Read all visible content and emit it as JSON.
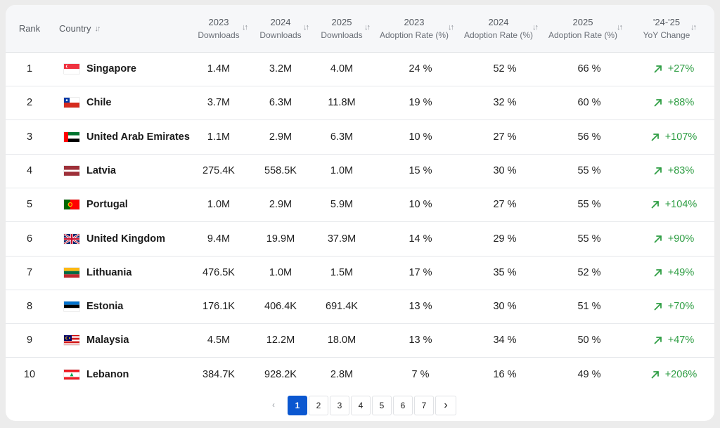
{
  "headers": {
    "rank": "Rank",
    "country": "Country",
    "dl2023_year": "2023",
    "dl2023_sub": "Downloads",
    "dl2024_year": "2024",
    "dl2024_sub": "Downloads",
    "dl2025_year": "2025",
    "dl2025_sub": "Downloads",
    "ar2023_year": "2023",
    "ar2023_sub": "Adoption Rate (%)",
    "ar2024_year": "2024",
    "ar2024_sub": "Adoption Rate (%)",
    "ar2025_year": "2025",
    "ar2025_sub": "Adoption Rate (%)",
    "yoy_top": "'24-'25",
    "yoy_sub": "YoY Change",
    "sort_glyph": "↓↑"
  },
  "rows": [
    {
      "rank": "1",
      "country": "Singapore",
      "flag": "sg-flag-icon",
      "d23": "1.4M",
      "d24": "3.2M",
      "d25": "4.0M",
      "a23": "24 %",
      "a24": "52 %",
      "a25": "66 %",
      "yoy": "+27%"
    },
    {
      "rank": "2",
      "country": "Chile",
      "flag": "cl-flag-icon",
      "d23": "3.7M",
      "d24": "6.3M",
      "d25": "11.8M",
      "a23": "19 %",
      "a24": "32 %",
      "a25": "60 %",
      "yoy": "+88%"
    },
    {
      "rank": "3",
      "country": "United Arab Emirates",
      "flag": "ae-flag-icon",
      "d23": "1.1M",
      "d24": "2.9M",
      "d25": "6.3M",
      "a23": "10 %",
      "a24": "27 %",
      "a25": "56 %",
      "yoy": "+107%"
    },
    {
      "rank": "4",
      "country": "Latvia",
      "flag": "lv-flag-icon",
      "d23": "275.4K",
      "d24": "558.5K",
      "d25": "1.0M",
      "a23": "15 %",
      "a24": "30 %",
      "a25": "55 %",
      "yoy": "+83%"
    },
    {
      "rank": "5",
      "country": "Portugal",
      "flag": "pt-flag-icon",
      "d23": "1.0M",
      "d24": "2.9M",
      "d25": "5.9M",
      "a23": "10 %",
      "a24": "27 %",
      "a25": "55 %",
      "yoy": "+104%"
    },
    {
      "rank": "6",
      "country": "United Kingdom",
      "flag": "gb-flag-icon",
      "d23": "9.4M",
      "d24": "19.9M",
      "d25": "37.9M",
      "a23": "14 %",
      "a24": "29 %",
      "a25": "55 %",
      "yoy": "+90%"
    },
    {
      "rank": "7",
      "country": "Lithuania",
      "flag": "lt-flag-icon",
      "d23": "476.5K",
      "d24": "1.0M",
      "d25": "1.5M",
      "a23": "17 %",
      "a24": "35 %",
      "a25": "52 %",
      "yoy": "+49%"
    },
    {
      "rank": "8",
      "country": "Estonia",
      "flag": "ee-flag-icon",
      "d23": "176.1K",
      "d24": "406.4K",
      "d25": "691.4K",
      "a23": "13 %",
      "a24": "30 %",
      "a25": "51 %",
      "yoy": "+70%"
    },
    {
      "rank": "9",
      "country": "Malaysia",
      "flag": "my-flag-icon",
      "d23": "4.5M",
      "d24": "12.2M",
      "d25": "18.0M",
      "a23": "13 %",
      "a24": "34 %",
      "a25": "50 %",
      "yoy": "+47%"
    },
    {
      "rank": "10",
      "country": "Lebanon",
      "flag": "lb-flag-icon",
      "d23": "384.7K",
      "d24": "928.2K",
      "d25": "2.8M",
      "a23": "7 %",
      "a24": "16 %",
      "a25": "49 %",
      "yoy": "+206%"
    }
  ],
  "pagination": {
    "prev_glyph": "‹",
    "next_glyph": "›",
    "pages": [
      "1",
      "2",
      "3",
      "4",
      "5",
      "6",
      "7"
    ],
    "current": "1"
  },
  "colors": {
    "positive": "#2f9e44",
    "accent": "#0b57d0"
  }
}
